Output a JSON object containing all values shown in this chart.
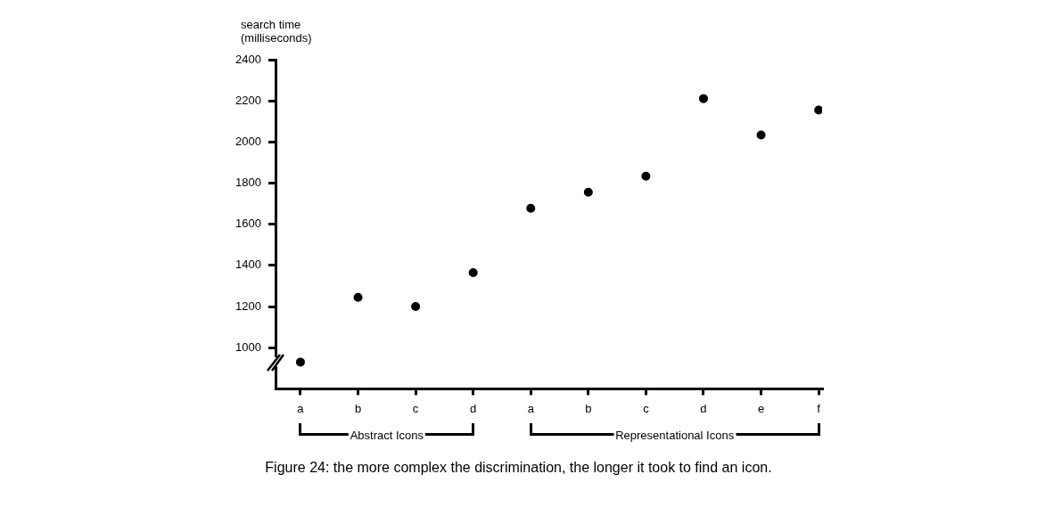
{
  "chart_data": {
    "type": "scatter",
    "ylabel": "search time (milliseconds)",
    "categories": [
      "a",
      "b",
      "c",
      "d",
      "a",
      "b",
      "c",
      "d",
      "e",
      "f"
    ],
    "series": [
      {
        "color": "#000000",
        "values": [
          930,
          1245,
          1200,
          1365,
          1678,
          1756,
          1834,
          2211,
          2034,
          2155
        ]
      }
    ],
    "ylim": [
      800,
      2400
    ],
    "yticks": [
      1000,
      1200,
      1400,
      1600,
      1800,
      2000,
      2200,
      2400
    ],
    "marker": "circle",
    "grid": false,
    "legend": false,
    "annotations": [
      "Abstract Icons",
      "Representational Icons",
      "Figure 24: the more complex the discrimination, the longer it took to find an icon."
    ]
  }
}
